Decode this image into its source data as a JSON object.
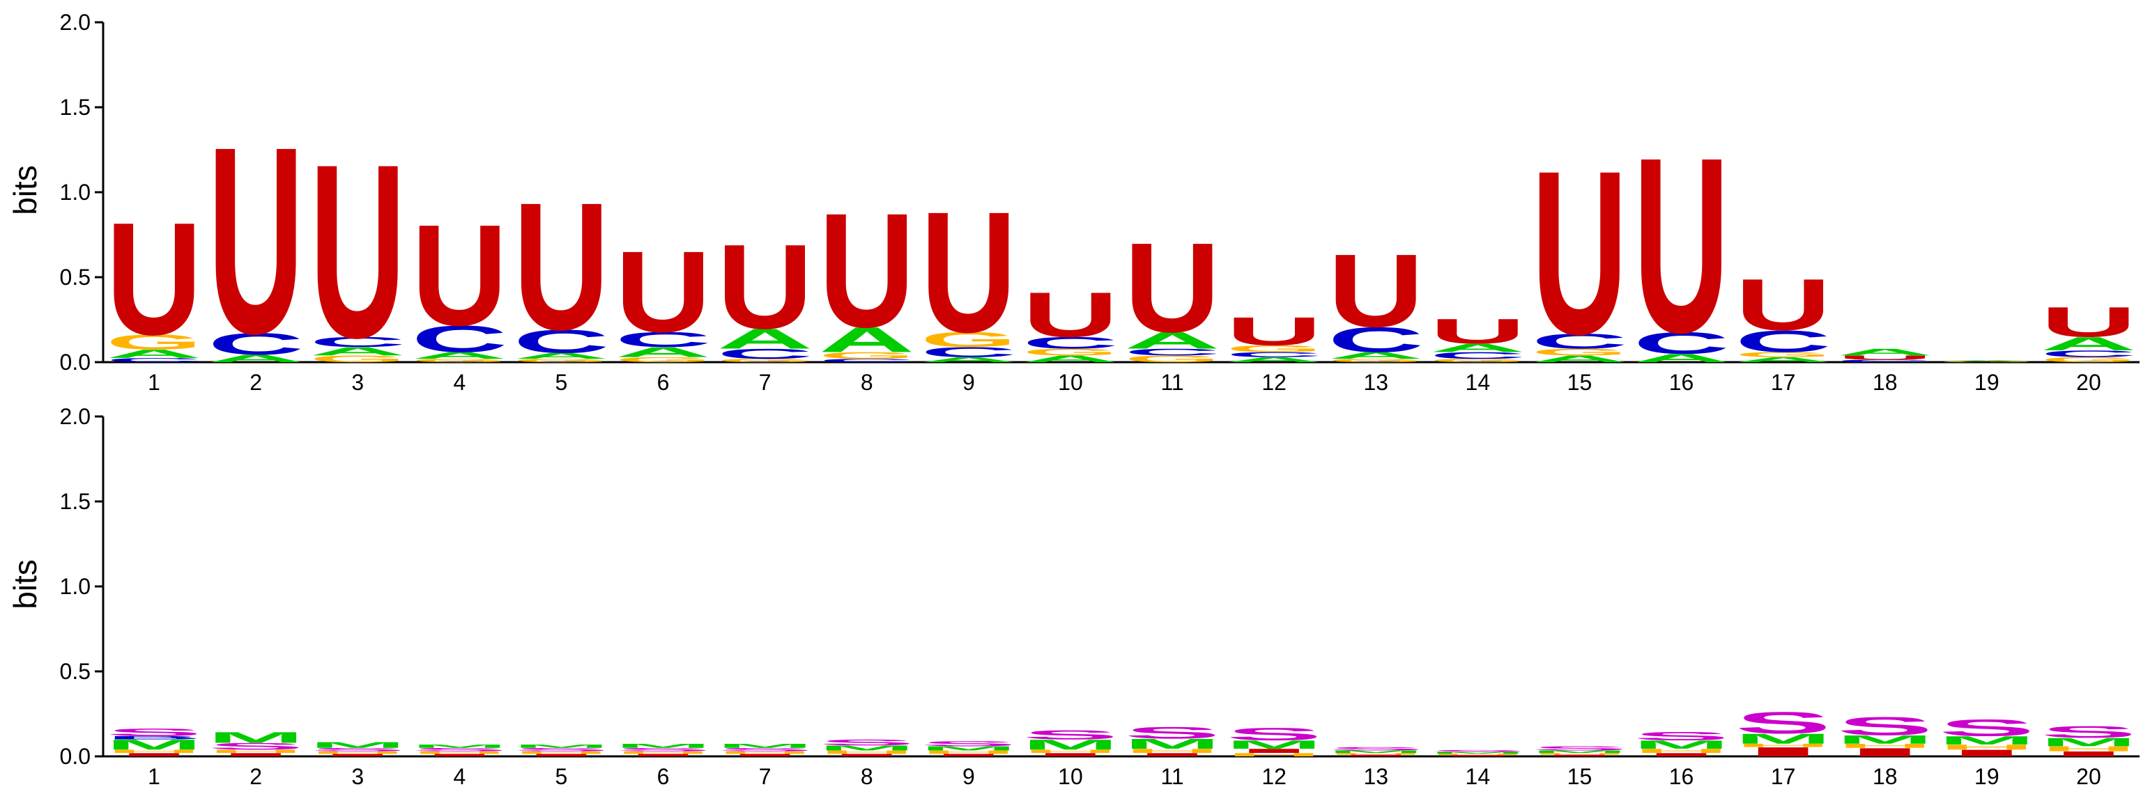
{
  "chart_data": [
    {
      "type": "sequence-logo",
      "ylabel": "bits",
      "ylim": [
        0,
        2.0
      ],
      "yticks": [
        "0.0",
        "0.5",
        "1.0",
        "1.5",
        "2.0"
      ],
      "positions": [
        "1",
        "2",
        "3",
        "4",
        "5",
        "6",
        "7",
        "8",
        "9",
        "10",
        "11",
        "12",
        "13",
        "14",
        "15",
        "16",
        "17",
        "18",
        "19",
        "20"
      ],
      "colors": {
        "U": "#cc0000",
        "C": "#0000cc",
        "G": "#ffb300",
        "A": "#00cc00"
      },
      "stacks": [
        [
          {
            "letter": "C",
            "value": 0.025
          },
          {
            "letter": "A",
            "value": 0.05
          },
          {
            "letter": "G",
            "value": 0.09
          },
          {
            "letter": "U",
            "value": 0.68
          }
        ],
        [
          {
            "letter": "A",
            "value": 0.045
          },
          {
            "letter": "C",
            "value": 0.13
          },
          {
            "letter": "U",
            "value": 1.13
          }
        ],
        [
          {
            "letter": "G",
            "value": 0.04
          },
          {
            "letter": "A",
            "value": 0.05
          },
          {
            "letter": "C",
            "value": 0.06
          },
          {
            "letter": "U",
            "value": 1.05
          }
        ],
        [
          {
            "letter": "G",
            "value": 0.02
          },
          {
            "letter": "A",
            "value": 0.04
          },
          {
            "letter": "C",
            "value": 0.16
          },
          {
            "letter": "U",
            "value": 0.61
          }
        ],
        [
          {
            "letter": "G",
            "value": 0.02
          },
          {
            "letter": "A",
            "value": 0.035
          },
          {
            "letter": "C",
            "value": 0.14
          },
          {
            "letter": "U",
            "value": 0.77
          }
        ],
        [
          {
            "letter": "G",
            "value": 0.03
          },
          {
            "letter": "A",
            "value": 0.06
          },
          {
            "letter": "C",
            "value": 0.09
          },
          {
            "letter": "U",
            "value": 0.49
          }
        ],
        [
          {
            "letter": "G",
            "value": 0.02
          },
          {
            "letter": "C",
            "value": 0.06
          },
          {
            "letter": "A",
            "value": 0.12
          },
          {
            "letter": "U",
            "value": 0.51
          }
        ],
        [
          {
            "letter": "C",
            "value": 0.02
          },
          {
            "letter": "G",
            "value": 0.04
          },
          {
            "letter": "A",
            "value": 0.15
          },
          {
            "letter": "U",
            "value": 0.69
          }
        ],
        [
          {
            "letter": "A",
            "value": 0.03
          },
          {
            "letter": "C",
            "value": 0.06
          },
          {
            "letter": "G",
            "value": 0.09
          },
          {
            "letter": "U",
            "value": 0.73
          }
        ],
        [
          {
            "letter": "A",
            "value": 0.04
          },
          {
            "letter": "G",
            "value": 0.04
          },
          {
            "letter": "C",
            "value": 0.07
          },
          {
            "letter": "U",
            "value": 0.27
          }
        ],
        [
          {
            "letter": "G",
            "value": 0.04
          },
          {
            "letter": "C",
            "value": 0.04
          },
          {
            "letter": "A",
            "value": 0.1
          },
          {
            "letter": "U",
            "value": 0.54
          }
        ],
        [
          {
            "letter": "A",
            "value": 0.03
          },
          {
            "letter": "C",
            "value": 0.03
          },
          {
            "letter": "G",
            "value": 0.04
          },
          {
            "letter": "U",
            "value": 0.17
          }
        ],
        [
          {
            "letter": "G",
            "value": 0.02
          },
          {
            "letter": "A",
            "value": 0.04
          },
          {
            "letter": "C",
            "value": 0.15
          },
          {
            "letter": "U",
            "value": 0.44
          }
        ],
        [
          {
            "letter": "G",
            "value": 0.02
          },
          {
            "letter": "C",
            "value": 0.04
          },
          {
            "letter": "A",
            "value": 0.05
          },
          {
            "letter": "U",
            "value": 0.15
          }
        ],
        [
          {
            "letter": "A",
            "value": 0.04
          },
          {
            "letter": "G",
            "value": 0.04
          },
          {
            "letter": "C",
            "value": 0.09
          },
          {
            "letter": "U",
            "value": 0.99
          }
        ],
        [
          {
            "letter": "A",
            "value": 0.05
          },
          {
            "letter": "C",
            "value": 0.13
          },
          {
            "letter": "U",
            "value": 1.06
          }
        ],
        [
          {
            "letter": "A",
            "value": 0.03
          },
          {
            "letter": "G",
            "value": 0.03
          },
          {
            "letter": "C",
            "value": 0.13
          },
          {
            "letter": "U",
            "value": 0.31
          }
        ],
        [
          {
            "letter": "C",
            "value": 0.015
          },
          {
            "letter": "U",
            "value": 0.025
          },
          {
            "letter": "A",
            "value": 0.04
          }
        ],
        [
          {
            "letter": "G",
            "value": 0.005
          },
          {
            "letter": "A",
            "value": 0.005
          }
        ],
        [
          {
            "letter": "G",
            "value": 0.03
          },
          {
            "letter": "C",
            "value": 0.04
          },
          {
            "letter": "A",
            "value": 0.08
          },
          {
            "letter": "U",
            "value": 0.18
          }
        ]
      ]
    },
    {
      "type": "sequence-logo",
      "ylabel": "bits",
      "ylim": [
        0,
        2.0
      ],
      "yticks": [
        "0.0",
        "0.5",
        "1.0",
        "1.5",
        "2.0"
      ],
      "positions": [
        "1",
        "2",
        "3",
        "4",
        "5",
        "6",
        "7",
        "8",
        "9",
        "10",
        "11",
        "12",
        "13",
        "14",
        "15",
        "16",
        "17",
        "18",
        "19",
        "20"
      ],
      "colors": {
        "S": "#cc00cc",
        "M": "#00cc00",
        "H": "#ffb300",
        "I": "#cc0000",
        "B": "#0000cc"
      },
      "stacks": [
        [
          {
            "letter": "I",
            "value": 0.02
          },
          {
            "letter": "H",
            "value": 0.02
          },
          {
            "letter": "M",
            "value": 0.06
          },
          {
            "letter": "B",
            "value": 0.02
          },
          {
            "letter": "S",
            "value": 0.045
          }
        ],
        [
          {
            "letter": "I",
            "value": 0.02
          },
          {
            "letter": "H",
            "value": 0.02
          },
          {
            "letter": "S",
            "value": 0.04
          },
          {
            "letter": "M",
            "value": 0.065
          }
        ],
        [
          {
            "letter": "I",
            "value": 0.015
          },
          {
            "letter": "H",
            "value": 0.015
          },
          {
            "letter": "S",
            "value": 0.02
          },
          {
            "letter": "M",
            "value": 0.035
          }
        ],
        [
          {
            "letter": "I",
            "value": 0.015
          },
          {
            "letter": "H",
            "value": 0.015
          },
          {
            "letter": "S",
            "value": 0.02
          },
          {
            "letter": "M",
            "value": 0.02
          }
        ],
        [
          {
            "letter": "I",
            "value": 0.015
          },
          {
            "letter": "H",
            "value": 0.015
          },
          {
            "letter": "S",
            "value": 0.02
          },
          {
            "letter": "M",
            "value": 0.02
          }
        ],
        [
          {
            "letter": "I",
            "value": 0.015
          },
          {
            "letter": "H",
            "value": 0.015
          },
          {
            "letter": "S",
            "value": 0.02
          },
          {
            "letter": "M",
            "value": 0.025
          }
        ],
        [
          {
            "letter": "I",
            "value": 0.015
          },
          {
            "letter": "H",
            "value": 0.015
          },
          {
            "letter": "S",
            "value": 0.02
          },
          {
            "letter": "M",
            "value": 0.025
          }
        ],
        [
          {
            "letter": "I",
            "value": 0.015
          },
          {
            "letter": "H",
            "value": 0.02
          },
          {
            "letter": "M",
            "value": 0.03
          },
          {
            "letter": "S",
            "value": 0.035
          }
        ],
        [
          {
            "letter": "I",
            "value": 0.015
          },
          {
            "letter": "H",
            "value": 0.02
          },
          {
            "letter": "M",
            "value": 0.025
          },
          {
            "letter": "S",
            "value": 0.03
          }
        ],
        [
          {
            "letter": "I",
            "value": 0.02
          },
          {
            "letter": "H",
            "value": 0.02
          },
          {
            "letter": "M",
            "value": 0.06
          },
          {
            "letter": "S",
            "value": 0.055
          }
        ],
        [
          {
            "letter": "I",
            "value": 0.02
          },
          {
            "letter": "H",
            "value": 0.025
          },
          {
            "letter": "M",
            "value": 0.06
          },
          {
            "letter": "S",
            "value": 0.07
          }
        ],
        [
          {
            "letter": "H",
            "value": 0.02
          },
          {
            "letter": "I",
            "value": 0.025
          },
          {
            "letter": "M",
            "value": 0.05
          },
          {
            "letter": "S",
            "value": 0.075
          }
        ],
        [
          {
            "letter": "I",
            "value": 0.01
          },
          {
            "letter": "H",
            "value": 0.01
          },
          {
            "letter": "M",
            "value": 0.015
          },
          {
            "letter": "S",
            "value": 0.02
          }
        ],
        [
          {
            "letter": "I",
            "value": 0.008
          },
          {
            "letter": "H",
            "value": 0.008
          },
          {
            "letter": "M",
            "value": 0.01
          },
          {
            "letter": "S",
            "value": 0.012
          }
        ],
        [
          {
            "letter": "I",
            "value": 0.01
          },
          {
            "letter": "H",
            "value": 0.01
          },
          {
            "letter": "M",
            "value": 0.015
          },
          {
            "letter": "S",
            "value": 0.025
          }
        ],
        [
          {
            "letter": "I",
            "value": 0.02
          },
          {
            "letter": "H",
            "value": 0.025
          },
          {
            "letter": "M",
            "value": 0.05
          },
          {
            "letter": "S",
            "value": 0.05
          }
        ],
        [
          {
            "letter": "I",
            "value": 0.055
          },
          {
            "letter": "H",
            "value": 0.02
          },
          {
            "letter": "M",
            "value": 0.06
          },
          {
            "letter": "S",
            "value": 0.13
          }
        ],
        [
          {
            "letter": "I",
            "value": 0.05
          },
          {
            "letter": "H",
            "value": 0.025
          },
          {
            "letter": "M",
            "value": 0.05
          },
          {
            "letter": "S",
            "value": 0.11
          }
        ],
        [
          {
            "letter": "I",
            "value": 0.04
          },
          {
            "letter": "H",
            "value": 0.03
          },
          {
            "letter": "M",
            "value": 0.05
          },
          {
            "letter": "S",
            "value": 0.1
          }
        ],
        [
          {
            "letter": "I",
            "value": 0.03
          },
          {
            "letter": "H",
            "value": 0.03
          },
          {
            "letter": "M",
            "value": 0.05
          },
          {
            "letter": "S",
            "value": 0.07
          }
        ]
      ]
    }
  ]
}
